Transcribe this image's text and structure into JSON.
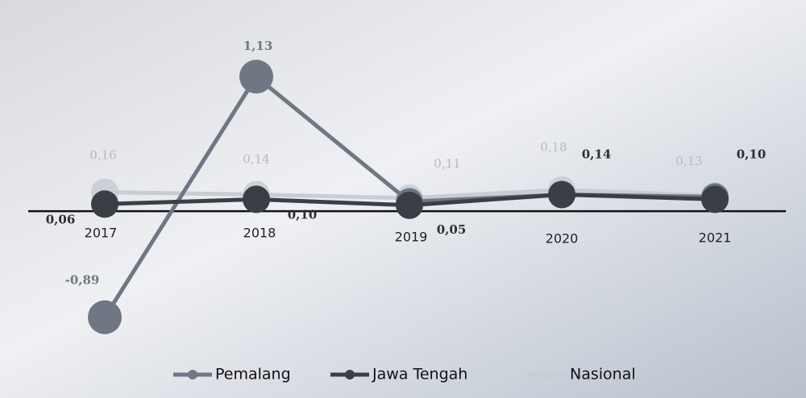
{
  "chart_data": {
    "type": "line",
    "categories": [
      "2017",
      "2018",
      "2019",
      "2020",
      "2021"
    ],
    "series": [
      {
        "name": "Pemalang",
        "color": "#6f7784",
        "values": [
          -0.89,
          1.13,
          0.08,
          0.14,
          0.12
        ],
        "value_labels": [
          "-0,89",
          "1,13",
          null,
          null,
          null
        ]
      },
      {
        "name": "Jawa Tengah",
        "color": "#3a3f46",
        "values": [
          0.06,
          0.1,
          0.05,
          0.14,
          0.1
        ],
        "value_labels": [
          "0,06",
          "0,10",
          "0,05",
          "0,14",
          "0,10"
        ]
      },
      {
        "name": "Nasional",
        "color": "#c8ccd4",
        "values": [
          0.16,
          0.14,
          0.11,
          0.18,
          0.13
        ],
        "value_labels": [
          "0,16",
          "0,14",
          "0,11",
          "0,18",
          "0,13"
        ]
      }
    ],
    "ylim": [
      -1.0,
      1.3
    ],
    "legend": "bottom"
  }
}
